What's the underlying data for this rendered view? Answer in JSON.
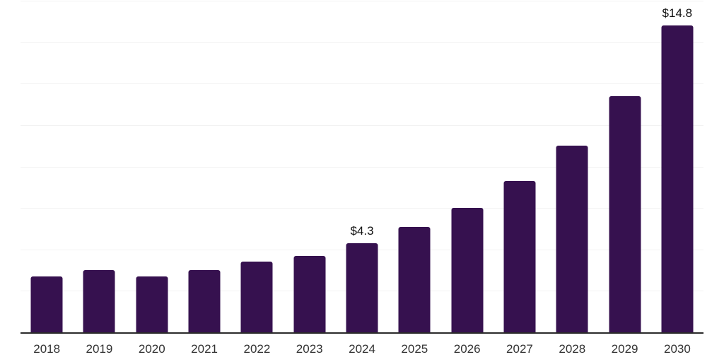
{
  "chart_data": {
    "type": "bar",
    "title": "",
    "xlabel": "",
    "ylabel": "",
    "categories": [
      "2018",
      "2019",
      "2020",
      "2021",
      "2022",
      "2023",
      "2024",
      "2025",
      "2026",
      "2027",
      "2028",
      "2029",
      "2030"
    ],
    "values": [
      2.7,
      3.0,
      2.7,
      3.0,
      3.4,
      3.7,
      4.3,
      5.1,
      6.0,
      7.3,
      9.0,
      11.4,
      14.8
    ],
    "data_labels": [
      "",
      "",
      "",
      "",
      "",
      "",
      "$4.3",
      "",
      "",
      "",
      "",
      "",
      "$14.8"
    ],
    "ylim": [
      0,
      16
    ],
    "gridline_step": 2,
    "grid": "horizontal",
    "legend": false,
    "y_axis_tick_labels_visible": false,
    "colors": {
      "bar": "#36114F",
      "gridline": "#F2F2F2",
      "axis_line": "#2B2B2B",
      "tick_label": "#333333",
      "data_label": "#111111",
      "background": "#FFFFFF"
    }
  }
}
